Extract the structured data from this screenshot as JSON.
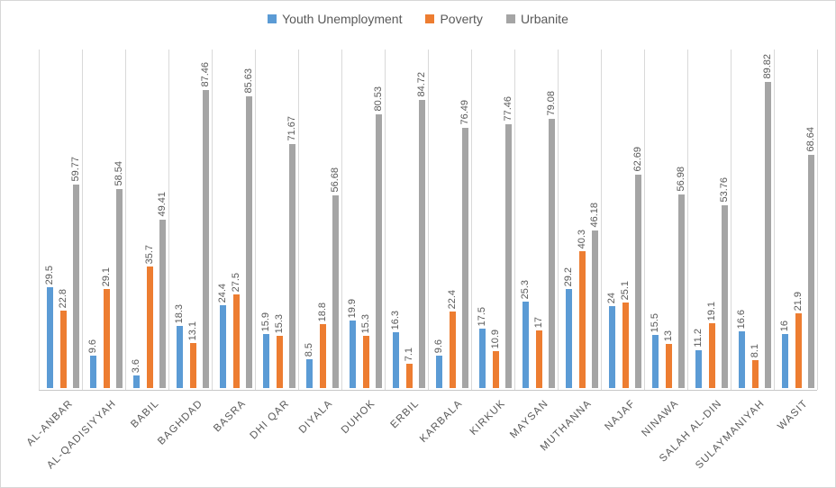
{
  "chart_data": {
    "type": "bar",
    "title": "",
    "xlabel": "",
    "ylabel": "",
    "ylim": [
      0,
      100
    ],
    "legend_position": "top",
    "grid": "vertical-category-separators",
    "data_labels": "rotated-90-above-bars",
    "category_label_style": "rotated-45-uppercase",
    "text_color": "#595959",
    "gridline_color": "#d9d9d9",
    "categories": [
      "AL-ANBAR",
      "AL-QADISIYYAH",
      "BABIL",
      "BAGHDAD",
      "BASRA",
      "DHI QAR",
      "DIYALA",
      "DUHOK",
      "ERBIL",
      "KARBALA",
      "KIRKUK",
      "MAYSAN",
      "MUTHANNA",
      "NAJAF",
      "NINAWA",
      "SALAH AL-DIN",
      "SULAYMANIYAH",
      "WASIT"
    ],
    "series": [
      {
        "name": "Youth Unemployment",
        "color": "#5b9bd5",
        "values": [
          29.5,
          9.6,
          3.6,
          18.3,
          24.4,
          15.9,
          8.5,
          19.9,
          16.3,
          9.6,
          17.5,
          25.3,
          29.2,
          24,
          15.5,
          11.2,
          16.6,
          16
        ]
      },
      {
        "name": "Poverty",
        "color": "#ed7d31",
        "values": [
          22.8,
          29.1,
          35.7,
          13.1,
          27.5,
          15.3,
          18.8,
          15.3,
          7.1,
          22.4,
          10.9,
          17,
          40.3,
          25.1,
          13,
          19.1,
          8.1,
          21.9
        ]
      },
      {
        "name": "Urbanite",
        "color": "#a5a5a5",
        "values": [
          59.77,
          58.54,
          49.41,
          87.46,
          85.63,
          71.67,
          56.68,
          80.53,
          84.72,
          76.49,
          77.46,
          79.08,
          46.18,
          62.69,
          56.98,
          53.76,
          89.82,
          68.64
        ]
      }
    ]
  }
}
